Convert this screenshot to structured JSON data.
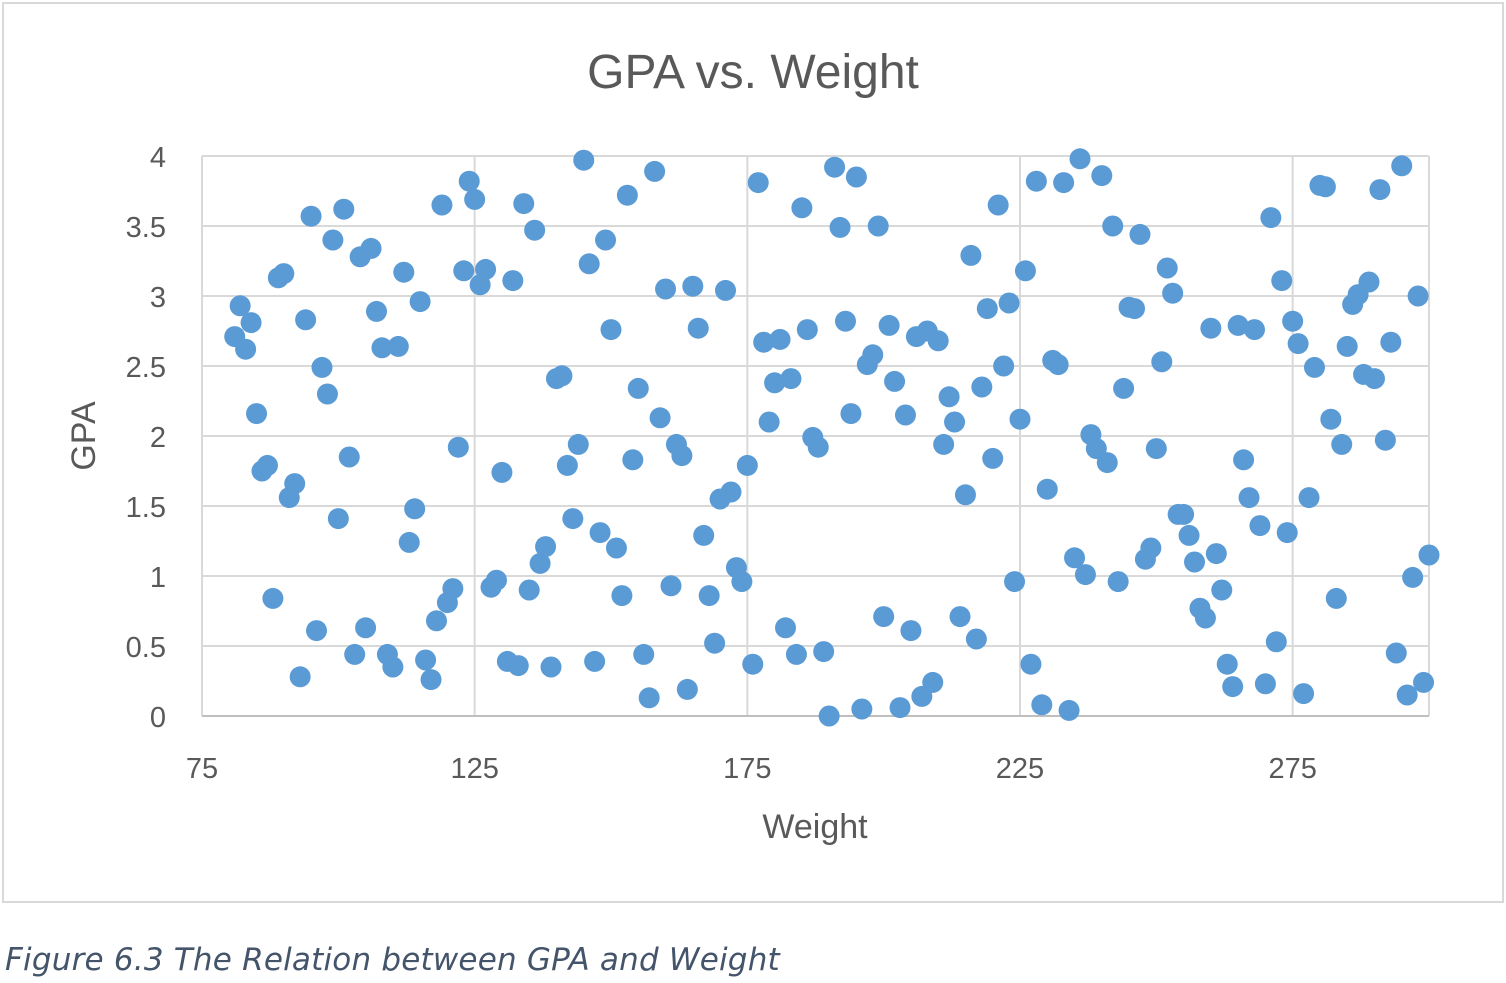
{
  "caption": "Figure 6.3 The Relation between GPA and Weight",
  "chart_data": {
    "type": "scatter",
    "title": "GPA vs. Weight",
    "xlabel": "Weight",
    "ylabel": "GPA",
    "xlim": [
      75,
      300
    ],
    "ylim": [
      0,
      4
    ],
    "xticks": [
      "75",
      "125",
      "175",
      "225",
      "275"
    ],
    "yticks": [
      "0",
      "0.5",
      "1",
      "1.5",
      "2",
      "2.5",
      "3",
      "3.5",
      "4"
    ],
    "grid": true,
    "legend": "none",
    "marker_color": "#5b9bd5",
    "x": [
      81,
      82,
      83,
      84,
      85,
      86,
      87,
      88,
      89,
      90,
      91,
      92,
      93,
      94,
      95,
      96,
      97,
      98,
      99,
      100,
      101,
      102,
      103,
      104,
      105,
      106,
      107,
      108,
      109,
      110,
      111,
      112,
      113,
      114,
      115,
      116,
      117,
      118,
      119,
      120,
      121,
      122,
      123,
      124,
      125,
      126,
      127,
      128,
      129,
      130,
      131,
      132,
      133,
      134,
      135,
      136,
      137,
      138,
      139,
      140,
      141,
      142,
      143,
      144,
      145,
      146,
      147,
      148,
      149,
      150,
      151,
      152,
      153,
      154,
      155,
      156,
      157,
      158,
      159,
      160,
      161,
      162,
      163,
      164,
      165,
      166,
      167,
      168,
      169,
      170,
      171,
      172,
      173,
      174,
      175,
      176,
      177,
      178,
      179,
      180,
      181,
      182,
      183,
      184,
      185,
      186,
      187,
      188,
      189,
      190,
      191,
      192,
      193,
      194,
      195,
      196,
      197,
      198,
      199,
      200,
      201,
      202,
      203,
      204,
      205,
      206,
      207,
      208,
      209,
      210,
      211,
      212,
      213,
      214,
      215,
      216,
      217,
      218,
      219,
      220,
      221,
      222,
      223,
      224,
      225,
      226,
      227,
      228,
      229,
      230,
      231,
      232,
      233,
      234,
      235,
      236,
      237,
      238,
      239,
      240,
      241,
      242,
      243,
      244,
      245,
      246,
      247,
      248,
      249,
      250,
      251,
      252,
      253,
      254,
      255,
      256,
      257,
      258,
      259,
      260,
      261,
      262,
      263,
      264,
      265,
      266,
      267,
      268,
      269,
      270,
      271,
      272,
      273,
      274,
      275,
      276,
      277,
      278,
      279,
      280,
      281,
      282,
      283,
      284,
      285,
      286,
      287,
      288,
      289,
      290,
      291,
      292,
      293,
      294,
      295,
      296,
      297,
      298,
      299,
      300
    ],
    "y": [
      2.71,
      2.93,
      2.62,
      2.81,
      2.16,
      1.75,
      1.79,
      0.84,
      3.13,
      3.16,
      1.56,
      1.66,
      0.28,
      2.83,
      3.57,
      0.61,
      2.49,
      2.3,
      3.4,
      1.41,
      3.62,
      1.85,
      0.44,
      3.28,
      0.63,
      3.34,
      2.89,
      2.63,
      0.44,
      0.35,
      2.64,
      3.17,
      1.24,
      1.48,
      2.96,
      0.4,
      0.26,
      0.68,
      3.65,
      0.81,
      0.91,
      1.92,
      3.18,
      3.82,
      3.69,
      3.08,
      3.19,
      0.92,
      0.97,
      1.74,
      0.39,
      3.11,
      0.36,
      3.66,
      0.9,
      3.47,
      1.09,
      1.21,
      0.35,
      2.41,
      2.43,
      1.79,
      1.41,
      1.94,
      3.97,
      3.23,
      0.39,
      1.31,
      3.4,
      2.76,
      1.2,
      0.86,
      3.72,
      1.83,
      2.34,
      0.44,
      0.13,
      3.89,
      2.13,
      3.05,
      0.93,
      1.94,
      1.86,
      0.19,
      3.07,
      2.77,
      1.29,
      0.86,
      0.52,
      1.55,
      3.04,
      1.6,
      1.06,
      0.96,
      1.79,
      0.37,
      3.81,
      2.67,
      2.1,
      2.38,
      2.69,
      0.63,
      2.41,
      0.44,
      3.63,
      2.76,
      1.99,
      1.92,
      0.46,
      0.0,
      3.92,
      3.49,
      2.82,
      2.16,
      3.85,
      0.05,
      2.51,
      2.58,
      3.5,
      0.71,
      2.79,
      2.39,
      0.06,
      2.15,
      0.61,
      2.71,
      0.14,
      2.75,
      0.24,
      2.68,
      1.94,
      2.28,
      2.1,
      0.71,
      1.58,
      3.29,
      0.55,
      2.35,
      2.91,
      1.84,
      3.65,
      2.5,
      2.95,
      0.96,
      2.12,
      3.18,
      0.37,
      3.82,
      0.08,
      1.62,
      2.54,
      2.51,
      3.81,
      0.04,
      1.13,
      3.98,
      1.01,
      2.01,
      1.91,
      3.86,
      1.81,
      3.5,
      0.96,
      2.34,
      2.92,
      2.91,
      3.44,
      1.12,
      1.2,
      1.91,
      2.53,
      3.2,
      3.02,
      1.44,
      1.44,
      1.29,
      1.1,
      0.77,
      0.7,
      2.77,
      1.16,
      0.9,
      0.37,
      0.21,
      2.79,
      1.83,
      1.56,
      2.76,
      1.36,
      0.23,
      3.56,
      0.53,
      3.11,
      1.31,
      2.82,
      2.66,
      0.16,
      1.56,
      2.49,
      3.79,
      3.78,
      2.12,
      0.84,
      1.94,
      2.64,
      2.94,
      3.01,
      2.44,
      3.1,
      2.41,
      3.76,
      1.97,
      2.67,
      0.45,
      3.93,
      0.15,
      0.99,
      3.0,
      0.24,
      1.15
    ]
  }
}
